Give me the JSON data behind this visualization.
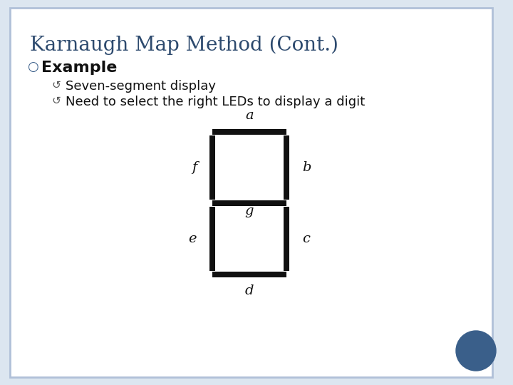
{
  "title": "Karnaugh Map Method (Cont.)",
  "title_color": "#2d4a6e",
  "background_color": "#dce6f0",
  "slide_bg": "#ffffff",
  "bullet1": "Example",
  "bullet2": "Seven-segment display",
  "bullet3": "Need to select the right LEDs to display a digit",
  "segment_color": "#111111",
  "label_color": "#111111",
  "label_fontsize": 14,
  "title_fontsize": 20,
  "bullet1_fontsize": 16,
  "bullet2_fontsize": 13,
  "circle_color": "#3a5f8a",
  "border_color": "#b0c0d8"
}
